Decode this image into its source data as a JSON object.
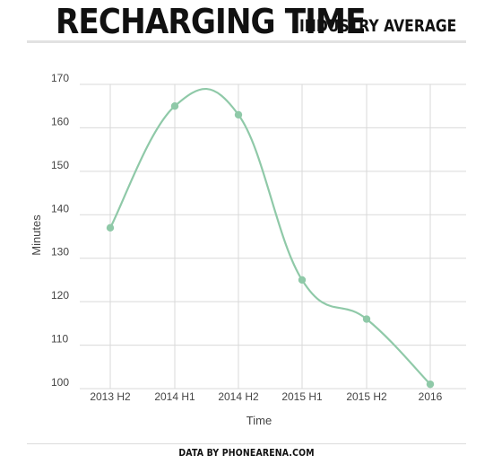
{
  "header": {
    "title": "RECHARGING TIME",
    "subtitle": "INDUSTRY AVERAGE"
  },
  "footer": {
    "credit": "DATA BY PHONEARENA.COM"
  },
  "colors": {
    "line": "#8fc9a8",
    "grid": "#d9d9d9",
    "text": "#444444"
  },
  "chart_data": {
    "type": "line",
    "categories": [
      "2013 H2",
      "2014 H1",
      "2014 H2",
      "2015 H1",
      "2015 H2",
      "2016"
    ],
    "series": [
      {
        "values": [
          137,
          165,
          163,
          125,
          116,
          101
        ]
      }
    ],
    "xlabel": "Time",
    "ylabel": "Minutes",
    "yticks": [
      100,
      110,
      120,
      130,
      140,
      150,
      160,
      170
    ],
    "ylim": [
      100,
      170
    ],
    "grid": true,
    "smooth": true
  }
}
